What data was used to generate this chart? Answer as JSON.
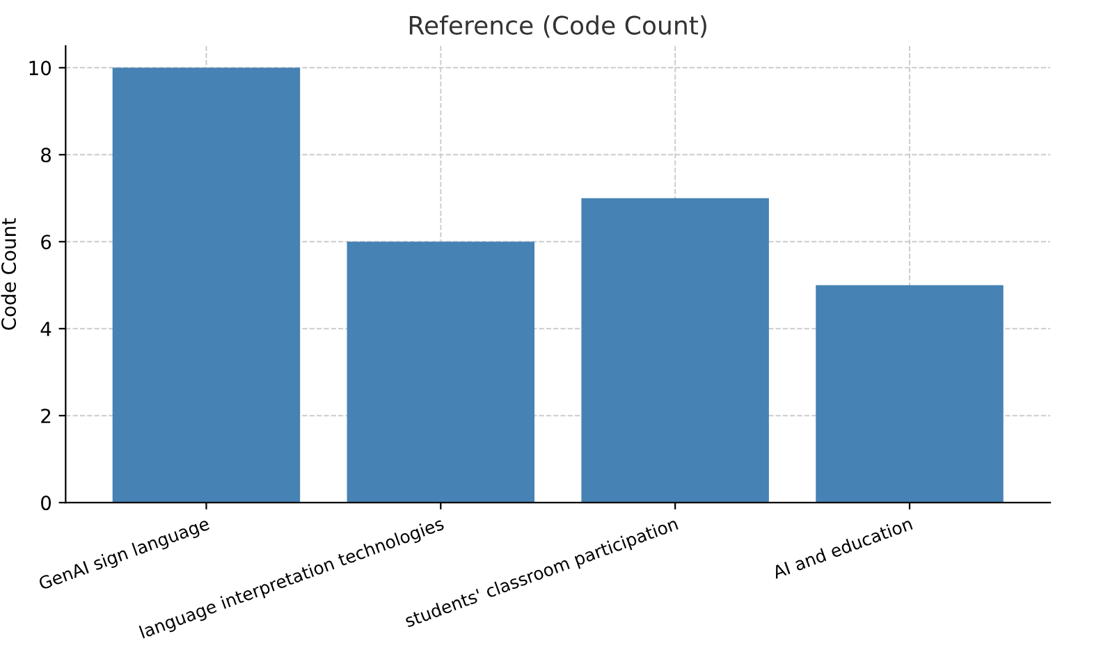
{
  "chart_data": {
    "type": "bar",
    "title": "Reference (Code Count)",
    "ylabel": "Code Count",
    "categories": [
      "GenAI sign language",
      "language interpretation technologies",
      "students' classroom participation",
      "AI and education"
    ],
    "values": [
      10,
      6,
      7,
      5
    ],
    "color": "#4682b4",
    "ylim": [
      0,
      10.5
    ],
    "yticks": [
      0,
      2,
      4,
      6,
      8,
      10
    ],
    "grid": true,
    "line_style": "dashed"
  }
}
